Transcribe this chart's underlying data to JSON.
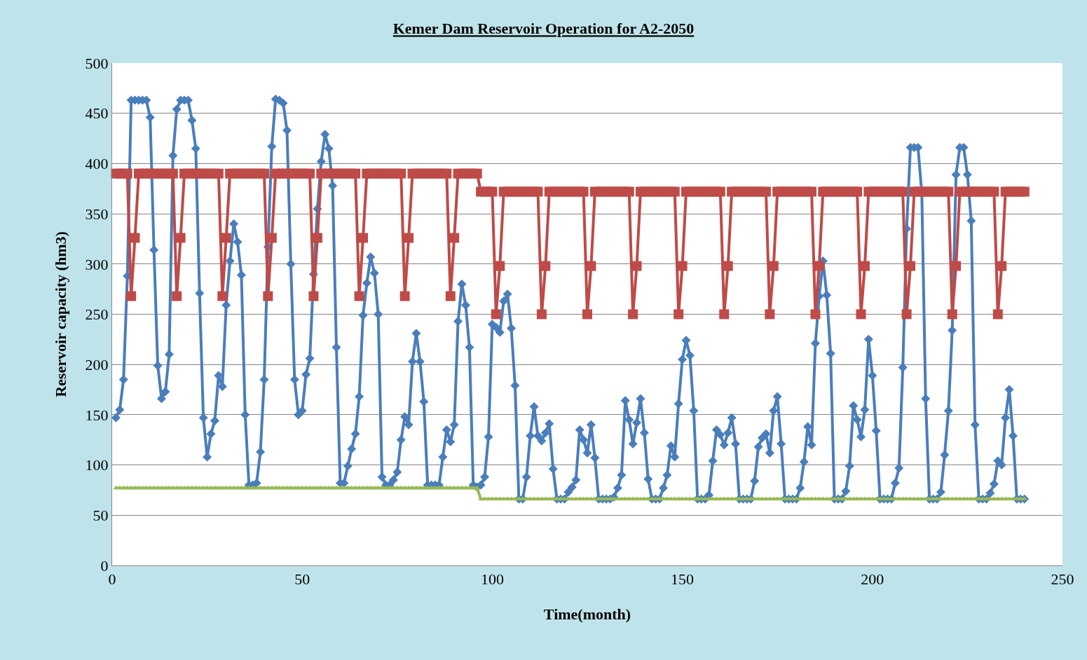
{
  "chart_data": {
    "type": "line",
    "title": "Kemer Dam Reservoir Operation for A2-2050",
    "xlabel": "Time(month)",
    "ylabel": "Reservoir capacity (hm3)",
    "x": [
      1,
      2,
      3,
      4,
      5,
      6,
      7,
      8,
      9,
      10,
      11,
      12,
      13,
      14,
      15,
      16,
      17,
      18,
      19,
      20,
      21,
      22,
      23,
      24,
      25,
      26,
      27,
      28,
      29,
      30,
      31,
      32,
      33,
      34,
      35,
      36,
      37,
      38,
      39,
      40,
      41,
      42,
      43,
      44,
      45,
      46,
      47,
      48,
      49,
      50,
      51,
      52,
      53,
      54,
      55,
      56,
      57,
      58,
      59,
      60,
      61,
      62,
      63,
      64,
      65,
      66,
      67,
      68,
      69,
      70,
      71,
      72,
      73,
      74,
      75,
      76,
      77,
      78,
      79,
      80,
      81,
      82,
      83,
      84,
      85,
      86,
      87,
      88,
      89,
      90,
      91,
      92,
      93,
      94,
      95,
      96,
      97,
      98,
      99,
      100,
      101,
      102,
      103,
      104,
      105,
      106,
      107,
      108,
      109,
      110,
      111,
      112,
      113,
      114,
      115,
      116,
      117,
      118,
      119,
      120,
      121,
      122,
      123,
      124,
      125,
      126,
      127,
      128,
      129,
      130,
      131,
      132,
      133,
      134,
      135,
      136,
      137,
      138,
      139,
      140,
      141,
      142,
      143,
      144,
      145,
      146,
      147,
      148,
      149,
      150,
      151,
      152,
      153,
      154,
      155,
      156,
      157,
      158,
      159,
      160,
      161,
      162,
      163,
      164,
      165,
      166,
      167,
      168,
      169,
      170,
      171,
      172,
      173,
      174,
      175,
      176,
      177,
      178,
      179,
      180,
      181,
      182,
      183,
      184,
      185,
      186,
      187,
      188,
      189,
      190,
      191,
      192,
      193,
      194,
      195,
      196,
      197,
      198,
      199,
      200,
      201,
      202,
      203,
      204,
      205,
      206,
      207,
      208,
      209,
      210,
      211,
      212,
      213,
      214,
      215,
      216,
      217,
      218,
      219,
      220,
      221,
      222,
      223,
      224,
      225,
      226,
      227,
      228,
      229,
      230,
      231,
      232,
      233,
      234,
      235,
      236,
      237,
      238,
      239,
      240
    ],
    "series": [
      {
        "color": "#4a7ebb",
        "marker": "diamond",
        "values": [
          147,
          155,
          185,
          288,
          463,
          463,
          463,
          463,
          463,
          446,
          314,
          199,
          166,
          173,
          210,
          408,
          454,
          463,
          463,
          463,
          443,
          415,
          271,
          147,
          108,
          131,
          144,
          189,
          178,
          259,
          303,
          340,
          322,
          289,
          150,
          80,
          80,
          82,
          113,
          185,
          317,
          417,
          464,
          463,
          460,
          433,
          300,
          185,
          150,
          154,
          190,
          206,
          290,
          355,
          402,
          429,
          415,
          378,
          217,
          82,
          82,
          99,
          116,
          131,
          168,
          249,
          281,
          307,
          291,
          250,
          88,
          80,
          80,
          85,
          93,
          125,
          148,
          140,
          203,
          231,
          203,
          163,
          80,
          80,
          80,
          80,
          108,
          135,
          123,
          140,
          243,
          280,
          259,
          217,
          80,
          78,
          80,
          88,
          128,
          240,
          237,
          232,
          263,
          270,
          236,
          179,
          66,
          66,
          88,
          129,
          158,
          129,
          124,
          132,
          141,
          96,
          66,
          66,
          66,
          73,
          78,
          85,
          135,
          125,
          112,
          140,
          107,
          66,
          66,
          66,
          66,
          68,
          77,
          90,
          164,
          145,
          121,
          142,
          166,
          132,
          86,
          66,
          66,
          66,
          77,
          90,
          119,
          108,
          161,
          205,
          224,
          209,
          154,
          66,
          66,
          66,
          70,
          104,
          135,
          130,
          120,
          132,
          147,
          121,
          66,
          66,
          66,
          66,
          84,
          118,
          127,
          131,
          112,
          154,
          168,
          121,
          66,
          66,
          66,
          66,
          77,
          103,
          138,
          120,
          221,
          268,
          303,
          269,
          211,
          66,
          66,
          66,
          74,
          99,
          159,
          145,
          128,
          155,
          225,
          189,
          134,
          66,
          66,
          66,
          66,
          82,
          97,
          197,
          335,
          416,
          416,
          416,
          370,
          166,
          66,
          66,
          66,
          73,
          110,
          154,
          234,
          389,
          416,
          416,
          389,
          343,
          140,
          66,
          66,
          66,
          72,
          81,
          104,
          100,
          147,
          175,
          129,
          66,
          66,
          66
        ]
      },
      {
        "color": "#be4b48",
        "marker": "square",
        "values": [
          390,
          390,
          390,
          390,
          268,
          326,
          390,
          390,
          390,
          390,
          390,
          390,
          390,
          390,
          390,
          390,
          268,
          326,
          390,
          390,
          390,
          390,
          390,
          390,
          390,
          390,
          390,
          390,
          268,
          326,
          390,
          390,
          390,
          390,
          390,
          390,
          390,
          390,
          390,
          390,
          268,
          326,
          390,
          390,
          390,
          390,
          390,
          390,
          390,
          390,
          390,
          390,
          268,
          326,
          390,
          390,
          390,
          390,
          390,
          390,
          390,
          390,
          390,
          390,
          268,
          326,
          390,
          390,
          390,
          390,
          390,
          390,
          390,
          390,
          390,
          390,
          268,
          326,
          390,
          390,
          390,
          390,
          390,
          390,
          390,
          390,
          390,
          390,
          268,
          326,
          390,
          390,
          390,
          390,
          390,
          390,
          372,
          372,
          372,
          372,
          250,
          298,
          372,
          372,
          372,
          372,
          372,
          372,
          372,
          372,
          372,
          372,
          250,
          298,
          372,
          372,
          372,
          372,
          372,
          372,
          372,
          372,
          372,
          372,
          250,
          298,
          372,
          372,
          372,
          372,
          372,
          372,
          372,
          372,
          372,
          372,
          250,
          298,
          372,
          372,
          372,
          372,
          372,
          372,
          372,
          372,
          372,
          372,
          250,
          298,
          372,
          372,
          372,
          372,
          372,
          372,
          372,
          372,
          372,
          372,
          250,
          298,
          372,
          372,
          372,
          372,
          372,
          372,
          372,
          372,
          372,
          372,
          250,
          298,
          372,
          372,
          372,
          372,
          372,
          372,
          372,
          372,
          372,
          372,
          250,
          298,
          372,
          372,
          372,
          372,
          372,
          372,
          372,
          372,
          372,
          372,
          250,
          298,
          372,
          372,
          372,
          372,
          372,
          372,
          372,
          372,
          372,
          372,
          250,
          298,
          372,
          372,
          372,
          372,
          372,
          372,
          372,
          372,
          372,
          372,
          250,
          298,
          372,
          372,
          372,
          372,
          372,
          372,
          372,
          372,
          372,
          372,
          250,
          298,
          372,
          372,
          372,
          372,
          372,
          372
        ]
      },
      {
        "color": "#98b954",
        "marker": "triangle",
        "values": [
          77,
          77,
          77,
          77,
          77,
          77,
          77,
          77,
          77,
          77,
          77,
          77,
          77,
          77,
          77,
          77,
          77,
          77,
          77,
          77,
          77,
          77,
          77,
          77,
          77,
          77,
          77,
          77,
          77,
          77,
          77,
          77,
          77,
          77,
          77,
          77,
          77,
          77,
          77,
          77,
          77,
          77,
          77,
          77,
          77,
          77,
          77,
          77,
          77,
          77,
          77,
          77,
          77,
          77,
          77,
          77,
          77,
          77,
          77,
          77,
          77,
          77,
          77,
          77,
          77,
          77,
          77,
          77,
          77,
          77,
          77,
          77,
          77,
          77,
          77,
          77,
          77,
          77,
          77,
          77,
          77,
          77,
          77,
          77,
          77,
          77,
          77,
          77,
          77,
          77,
          77,
          77,
          77,
          77,
          77,
          77,
          66,
          66,
          66,
          66,
          66,
          66,
          66,
          66,
          66,
          66,
          66,
          66,
          66,
          66,
          66,
          66,
          66,
          66,
          66,
          66,
          66,
          66,
          66,
          66,
          66,
          66,
          66,
          66,
          66,
          66,
          66,
          66,
          66,
          66,
          66,
          66,
          66,
          66,
          66,
          66,
          66,
          66,
          66,
          66,
          66,
          66,
          66,
          66,
          66,
          66,
          66,
          66,
          66,
          66,
          66,
          66,
          66,
          66,
          66,
          66,
          66,
          66,
          66,
          66,
          66,
          66,
          66,
          66,
          66,
          66,
          66,
          66,
          66,
          66,
          66,
          66,
          66,
          66,
          66,
          66,
          66,
          66,
          66,
          66,
          66,
          66,
          66,
          66,
          66,
          66,
          66,
          66,
          66,
          66,
          66,
          66,
          66,
          66,
          66,
          66,
          66,
          66,
          66,
          66,
          66,
          66,
          66,
          66,
          66,
          66,
          66,
          66,
          66,
          66,
          66,
          66,
          66,
          66,
          66,
          66,
          66,
          66,
          66,
          66,
          66,
          66,
          66,
          66,
          66,
          66,
          66,
          66,
          66,
          66,
          66,
          66,
          66,
          66,
          66,
          66,
          66,
          66,
          66,
          66
        ]
      }
    ],
    "xlim": [
      0,
      250
    ],
    "xticks": [
      0,
      50,
      100,
      150,
      200,
      250
    ],
    "ylim": [
      0,
      500
    ],
    "yticks": [
      0,
      50,
      100,
      150,
      200,
      250,
      300,
      350,
      400,
      450,
      500
    ],
    "grid": "y"
  }
}
